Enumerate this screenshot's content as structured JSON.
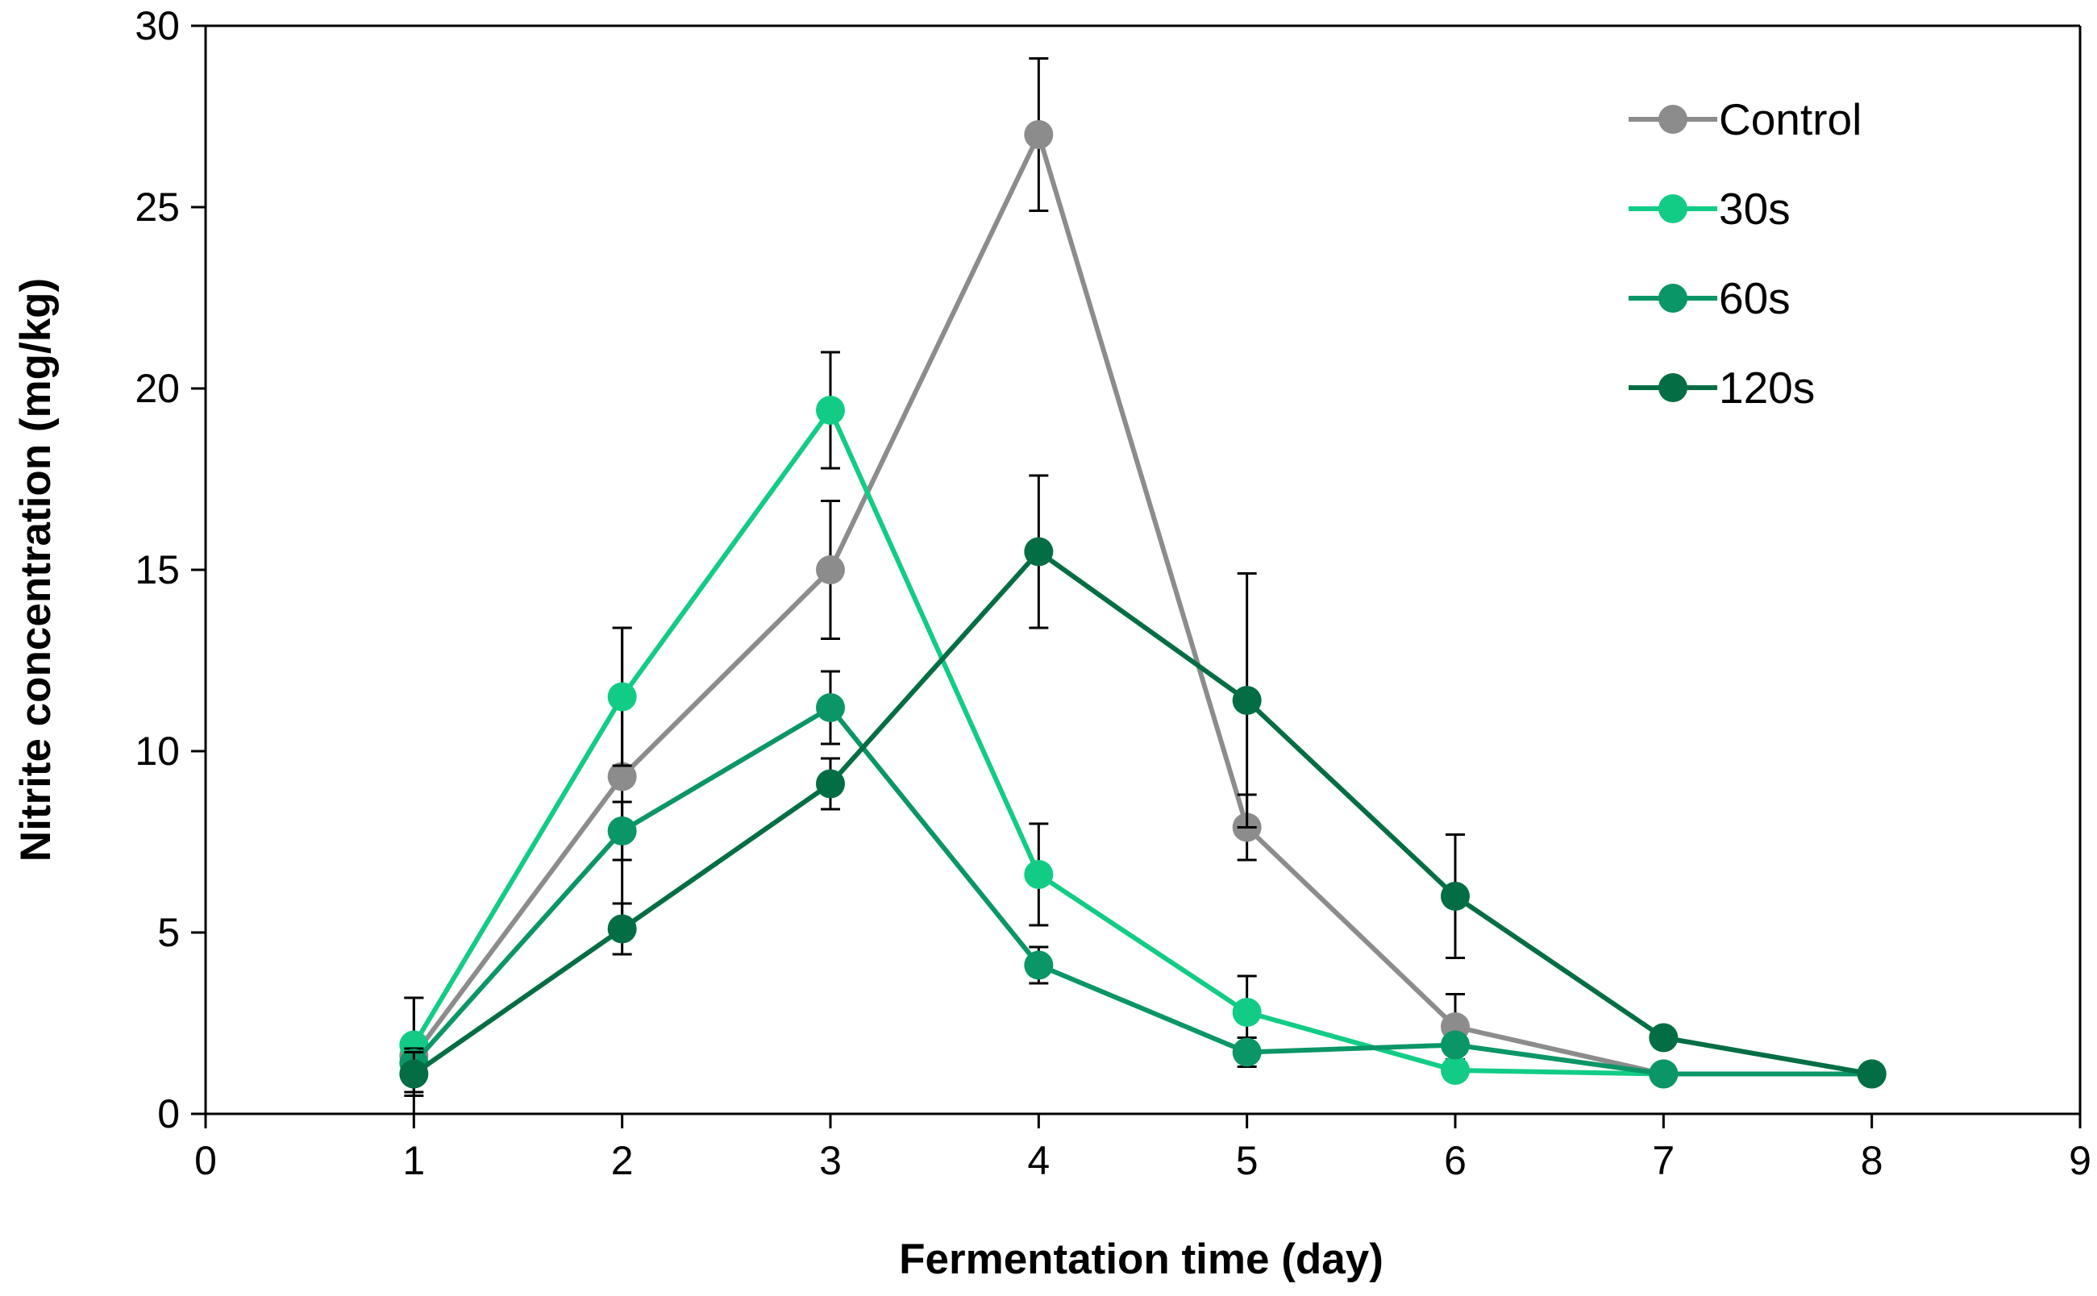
{
  "chart_data": {
    "type": "line",
    "title": "",
    "xlabel": "Fermentation time (day)",
    "ylabel": "Nitrite concentration (mg/kg)",
    "xlim": [
      0,
      9
    ],
    "ylim": [
      0,
      30
    ],
    "x_ticks": [
      0,
      1,
      2,
      3,
      4,
      5,
      6,
      7,
      8,
      9
    ],
    "y_ticks": [
      0,
      5,
      10,
      15,
      20,
      25,
      30
    ],
    "grid": false,
    "legend_position": "top-right",
    "x": [
      1,
      2,
      3,
      4,
      5,
      6,
      7,
      8
    ],
    "series": [
      {
        "name": "Control",
        "color": "#8c8c8c",
        "values": [
          1.6,
          9.3,
          15.0,
          27.0,
          7.9,
          2.4,
          1.1,
          1.1
        ],
        "errors": [
          1.6,
          4.1,
          1.9,
          2.1,
          0.9,
          0.9,
          0.1,
          0.1
        ]
      },
      {
        "name": "30s",
        "color": "#12cc86",
        "values": [
          1.9,
          11.5,
          19.4,
          6.6,
          2.8,
          1.2,
          1.1,
          1.1
        ],
        "errors": [
          1.3,
          1.9,
          1.6,
          1.4,
          1.0,
          0.1,
          0.1,
          0.1
        ]
      },
      {
        "name": "60s",
        "color": "#0a9666",
        "values": [
          1.4,
          7.8,
          11.2,
          4.1,
          1.7,
          1.9,
          1.1,
          1.1
        ],
        "errors": [
          0.4,
          0.8,
          1.0,
          0.5,
          0.4,
          0.1,
          0.1,
          0.1
        ]
      },
      {
        "name": "120s",
        "color": "#036e43",
        "values": [
          1.1,
          5.1,
          9.1,
          15.5,
          11.4,
          6.0,
          2.1,
          1.1
        ],
        "errors": [
          0.6,
          0.7,
          0.7,
          2.1,
          3.5,
          1.7,
          0.1,
          0.1
        ]
      }
    ],
    "axis_color": "#000000",
    "errorbar_color": "#000000"
  }
}
